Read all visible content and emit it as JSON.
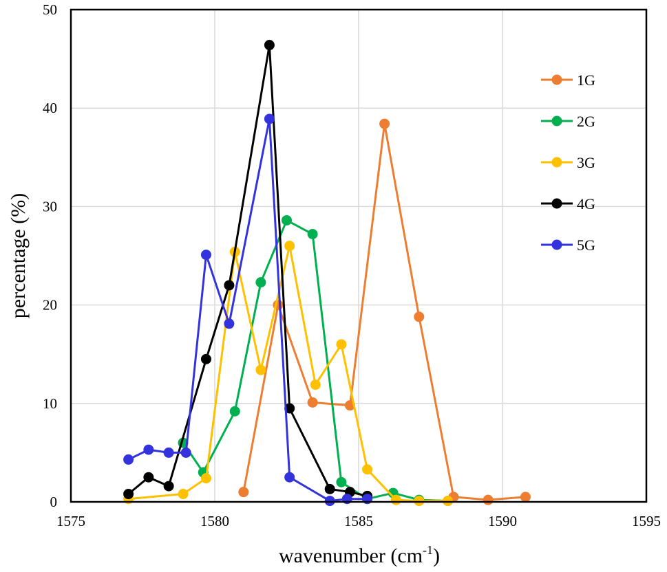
{
  "chart_data": {
    "type": "line",
    "xlabel": "wavenumber (cm",
    "xlabel_superscript": "-1",
    "xlabel_close": ")",
    "ylabel": "percentage (%)",
    "xlim": [
      1575,
      1595
    ],
    "ylim": [
      0,
      50
    ],
    "x_ticks": [
      "1575",
      "1580",
      "1585",
      "1590",
      "1595"
    ],
    "y_ticks": [
      "0",
      "10",
      "20",
      "30",
      "40",
      "50"
    ],
    "grid": true,
    "legend_position": "top-right",
    "series": [
      {
        "name": "1G",
        "color": "#ED7D31",
        "points": [
          [
            1581.0,
            1.0
          ],
          [
            1582.2,
            20.0
          ],
          [
            1583.4,
            10.1
          ],
          [
            1584.7,
            9.8
          ],
          [
            1585.9,
            38.4
          ],
          [
            1587.1,
            18.8
          ],
          [
            1588.3,
            0.5
          ],
          [
            1589.5,
            0.2
          ],
          [
            1590.8,
            0.5
          ]
        ]
      },
      {
        "name": "2G",
        "color": "#00B050",
        "points": [
          [
            1578.9,
            6.0
          ],
          [
            1579.6,
            3.0
          ],
          [
            1580.7,
            9.2
          ],
          [
            1581.6,
            22.3
          ],
          [
            1582.5,
            28.6
          ],
          [
            1583.4,
            27.2
          ],
          [
            1584.4,
            2.0
          ],
          [
            1585.3,
            0.3
          ],
          [
            1586.2,
            0.9
          ],
          [
            1587.1,
            0.2
          ],
          [
            1588.1,
            0.1
          ]
        ]
      },
      {
        "name": "3G",
        "color": "#FFC000",
        "points": [
          [
            1577.0,
            0.3
          ],
          [
            1578.9,
            0.8
          ],
          [
            1579.7,
            2.4
          ],
          [
            1580.7,
            25.4
          ],
          [
            1581.6,
            13.4
          ],
          [
            1582.6,
            26.0
          ],
          [
            1583.5,
            11.9
          ],
          [
            1584.4,
            16.0
          ],
          [
            1585.3,
            3.3
          ],
          [
            1586.3,
            0.2
          ],
          [
            1587.1,
            0.1
          ],
          [
            1588.1,
            0.1
          ]
        ]
      },
      {
        "name": "4G",
        "color": "#000000",
        "points": [
          [
            1577.0,
            0.8
          ],
          [
            1577.7,
            2.5
          ],
          [
            1578.4,
            1.6
          ],
          [
            1579.7,
            14.5
          ],
          [
            1580.5,
            22.0
          ],
          [
            1581.9,
            46.4
          ],
          [
            1582.6,
            9.5
          ],
          [
            1584.0,
            1.3
          ],
          [
            1584.7,
            1.0
          ],
          [
            1585.3,
            0.6
          ]
        ]
      },
      {
        "name": "5G",
        "color": "#3333DD",
        "points": [
          [
            1577.0,
            4.3
          ],
          [
            1577.7,
            5.3
          ],
          [
            1578.4,
            5.0
          ],
          [
            1579.0,
            5.0
          ],
          [
            1579.7,
            25.1
          ],
          [
            1580.5,
            18.1
          ],
          [
            1581.9,
            38.9
          ],
          [
            1582.6,
            2.5
          ],
          [
            1584.0,
            0.1
          ],
          [
            1584.6,
            0.3
          ],
          [
            1585.3,
            0.3
          ]
        ]
      }
    ]
  }
}
